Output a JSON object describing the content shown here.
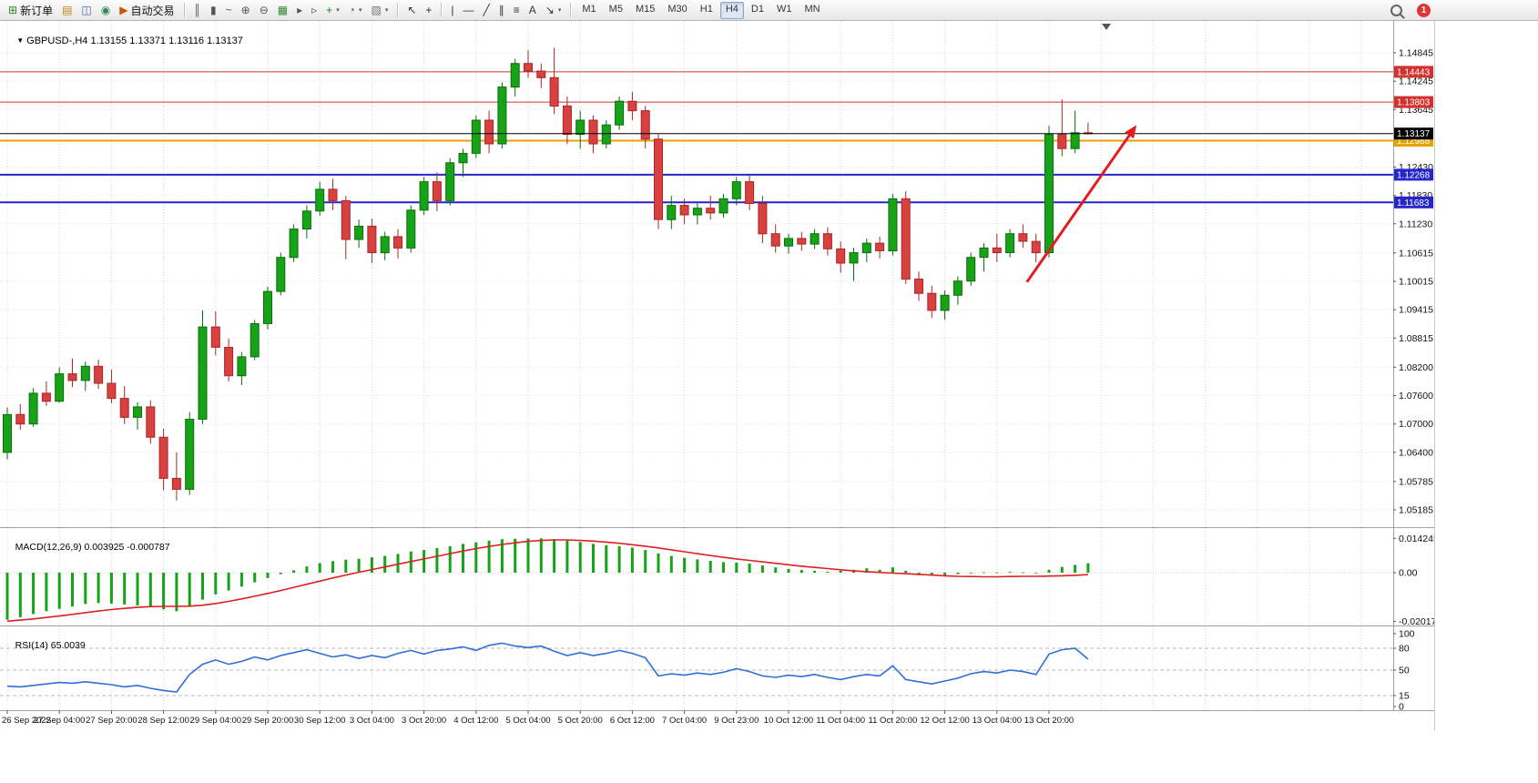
{
  "toolbar": {
    "badge_count": "1",
    "groups": [
      {
        "items": [
          {
            "name": "new-order-button",
            "icon_name": "new-order-icon",
            "glyph": "⊞",
            "color": "#2e8b2e",
            "label": "新订单"
          },
          {
            "name": "chart-profiles-icon",
            "glyph": "▤",
            "color": "#b8860b"
          },
          {
            "name": "market-watch-icon",
            "glyph": "◫",
            "color": "#4169aa"
          },
          {
            "name": "data-window-icon",
            "glyph": "◉",
            "color": "#2e8b57"
          },
          {
            "name": "autotrading-button",
            "icon_name": "autotrading-play-icon",
            "glyph": "▶",
            "color": "#cc5500",
            "label": "自动交易"
          }
        ]
      },
      {
        "items": [
          {
            "name": "bars-chart-icon",
            "glyph": "║",
            "color": "#555555"
          },
          {
            "name": "candlestick-chart-icon",
            "glyph": "▮",
            "color": "#555555"
          },
          {
            "name": "line-chart-icon",
            "glyph": "~",
            "color": "#555555"
          },
          {
            "name": "zoom-in-icon",
            "glyph": "⊕",
            "color": "#555555"
          },
          {
            "name": "zoom-out-icon",
            "glyph": "⊖",
            "color": "#555555"
          },
          {
            "name": "tile-windows-icon",
            "glyph": "▦",
            "color": "#2e8b2e"
          },
          {
            "name": "auto-scroll-icon",
            "glyph": "▸",
            "color": "#555555"
          },
          {
            "name": "chart-shift-icon",
            "glyph": "▹",
            "color": "#555555"
          },
          {
            "name": "indicators-add-icon",
            "glyph": "+",
            "color": "#1a8a1a",
            "dropdown": true
          },
          {
            "name": "periods-icon",
            "glyph": "◔",
            "color": "#4169aa",
            "dropdown": true
          },
          {
            "name": "templates-icon",
            "glyph": "▨",
            "color": "#777777",
            "dropdown": true
          }
        ]
      },
      {
        "items": [
          {
            "name": "cursor-icon",
            "glyph": "↖",
            "color": "#333333"
          },
          {
            "name": "crosshair-icon",
            "glyph": "+",
            "color": "#333333"
          }
        ]
      },
      {
        "items": [
          {
            "name": "vertical-line-icon",
            "glyph": "|",
            "color": "#333333"
          },
          {
            "name": "horizontal-line-icon",
            "glyph": "—",
            "color": "#333333"
          },
          {
            "name": "trendline-icon",
            "glyph": "╱",
            "color": "#333333"
          },
          {
            "name": "channel-icon",
            "glyph": "∥",
            "color": "#333333"
          },
          {
            "name": "fibonacci-icon",
            "glyph": "≡",
            "color": "#333333"
          },
          {
            "name": "text-icon",
            "glyph": "A",
            "color": "#333333"
          },
          {
            "name": "arrows-icon",
            "glyph": "↘",
            "color": "#333333",
            "dropdown": true
          }
        ]
      }
    ],
    "timeframes": [
      "M1",
      "M5",
      "M15",
      "M30",
      "H1",
      "H4",
      "D1",
      "W1",
      "MN"
    ],
    "active_timeframe": "H4"
  },
  "chart_header": {
    "dropdown": "▼",
    "symbol": "GBPUSD-,H4",
    "ohlc": "1.13155 1.13371 1.13116 1.13137"
  },
  "chart_data": {
    "type": "candlestick",
    "symbol": "GBPUSD-",
    "timeframe": "H4",
    "colors": {
      "bull": "#17a317",
      "bull_border": "#0a6e0a",
      "bear": "#d94040",
      "bear_border": "#a82626",
      "background": "#ffffff",
      "grid": "#d6d6d6"
    },
    "ylim": [
      1.049,
      1.15518
    ],
    "price_axis_ticks": [
      "1.14845",
      "1.14245",
      "1.13645",
      "1.12430",
      "1.11830",
      "1.11230",
      "1.10615",
      "1.10015",
      "1.09415",
      "1.08815",
      "1.08200",
      "1.07600",
      "1.07000",
      "1.06400",
      "1.05785",
      "1.05185"
    ],
    "x_labels": [
      "26 Sep 2022",
      "27 Sep 04:00",
      "27 Sep 20:00",
      "28 Sep 12:00",
      "29 Sep 04:00",
      "29 Sep 20:00",
      "30 Sep 12:00",
      "3 Oct 04:00",
      "3 Oct 20:00",
      "4 Oct 12:00",
      "5 Oct 04:00",
      "5 Oct 20:00",
      "6 Oct 12:00",
      "7 Oct 04:00",
      "9 Oct 23:00",
      "10 Oct 12:00",
      "11 Oct 04:00",
      "11 Oct 20:00",
      "12 Oct 12:00",
      "13 Oct 04:00",
      "13 Oct 20:00"
    ],
    "bars_per_label": 4,
    "candles": [
      [
        1.064,
        1.0735,
        1.0625,
        1.072
      ],
      [
        1.072,
        1.0742,
        1.0688,
        1.07
      ],
      [
        1.07,
        1.0776,
        1.0694,
        1.0765
      ],
      [
        1.0765,
        1.079,
        1.0738,
        1.0748
      ],
      [
        1.0748,
        1.082,
        1.0745,
        1.0806
      ],
      [
        1.0806,
        1.0838,
        1.0778,
        1.0792
      ],
      [
        1.0792,
        1.0832,
        1.077,
        1.0822
      ],
      [
        1.0822,
        1.0836,
        1.0774,
        1.0786
      ],
      [
        1.0786,
        1.0815,
        1.0744,
        1.0754
      ],
      [
        1.0754,
        1.078,
        1.07,
        1.0714
      ],
      [
        1.0714,
        1.0746,
        1.0688,
        1.0736
      ],
      [
        1.0736,
        1.075,
        1.0658,
        1.0672
      ],
      [
        1.0672,
        1.069,
        1.056,
        1.0585
      ],
      [
        1.0585,
        1.064,
        1.0538,
        1.0562
      ],
      [
        1.0562,
        1.0725,
        1.055,
        1.071
      ],
      [
        1.071,
        1.094,
        1.07,
        1.0905
      ],
      [
        1.0905,
        1.0938,
        1.0845,
        1.0862
      ],
      [
        1.0862,
        1.088,
        1.079,
        1.0802
      ],
      [
        1.0802,
        1.0852,
        1.0782,
        1.0842
      ],
      [
        1.0842,
        1.092,
        1.0835,
        1.0912
      ],
      [
        1.0912,
        1.099,
        1.09,
        1.098
      ],
      [
        1.098,
        1.1062,
        1.0972,
        1.1052
      ],
      [
        1.1052,
        1.1122,
        1.1042,
        1.1112
      ],
      [
        1.1112,
        1.1162,
        1.1092,
        1.115
      ],
      [
        1.115,
        1.1212,
        1.114,
        1.1196
      ],
      [
        1.1196,
        1.1218,
        1.1152,
        1.1172
      ],
      [
        1.1172,
        1.1182,
        1.1048,
        1.109
      ],
      [
        1.109,
        1.1132,
        1.1072,
        1.1118
      ],
      [
        1.1118,
        1.1134,
        1.104,
        1.1062
      ],
      [
        1.1062,
        1.1106,
        1.1046,
        1.1096
      ],
      [
        1.1096,
        1.1112,
        1.105,
        1.1072
      ],
      [
        1.1072,
        1.1162,
        1.1062,
        1.1152
      ],
      [
        1.1152,
        1.1222,
        1.1142,
        1.1212
      ],
      [
        1.1212,
        1.1232,
        1.115,
        1.1172
      ],
      [
        1.1172,
        1.1262,
        1.1162,
        1.1252
      ],
      [
        1.1252,
        1.1282,
        1.1222,
        1.1272
      ],
      [
        1.1272,
        1.1352,
        1.1262,
        1.1342
      ],
      [
        1.1342,
        1.1362,
        1.1272,
        1.1292
      ],
      [
        1.1292,
        1.1422,
        1.1282,
        1.1412
      ],
      [
        1.1412,
        1.1472,
        1.1392,
        1.1462
      ],
      [
        1.1462,
        1.149,
        1.1432,
        1.1446
      ],
      [
        1.1446,
        1.1462,
        1.141,
        1.1432
      ],
      [
        1.1432,
        1.1495,
        1.1355,
        1.1372
      ],
      [
        1.1372,
        1.1392,
        1.1292,
        1.1312
      ],
      [
        1.1312,
        1.1362,
        1.1282,
        1.1342
      ],
      [
        1.1342,
        1.1352,
        1.1272,
        1.1292
      ],
      [
        1.1292,
        1.1342,
        1.1282,
        1.1332
      ],
      [
        1.1332,
        1.1392,
        1.1322,
        1.1382
      ],
      [
        1.1382,
        1.1402,
        1.1342,
        1.1362
      ],
      [
        1.1362,
        1.1372,
        1.1282,
        1.1302
      ],
      [
        1.1302,
        1.1312,
        1.1112,
        1.1132
      ],
      [
        1.1132,
        1.1182,
        1.1112,
        1.1162
      ],
      [
        1.1162,
        1.1176,
        1.1122,
        1.1142
      ],
      [
        1.1142,
        1.1166,
        1.1122,
        1.1156
      ],
      [
        1.1156,
        1.1182,
        1.1132,
        1.1146
      ],
      [
        1.1146,
        1.1186,
        1.1136,
        1.1176
      ],
      [
        1.1176,
        1.1222,
        1.1162,
        1.1212
      ],
      [
        1.1212,
        1.1226,
        1.1152,
        1.1166
      ],
      [
        1.1166,
        1.1182,
        1.1082,
        1.1102
      ],
      [
        1.1102,
        1.1122,
        1.1062,
        1.1076
      ],
      [
        1.1076,
        1.1102,
        1.106,
        1.1092
      ],
      [
        1.1092,
        1.1106,
        1.1066,
        1.108
      ],
      [
        1.108,
        1.1112,
        1.107,
        1.1102
      ],
      [
        1.1102,
        1.1116,
        1.1056,
        1.107
      ],
      [
        1.107,
        1.1086,
        1.102,
        1.104
      ],
      [
        1.104,
        1.1072,
        1.1002,
        1.1062
      ],
      [
        1.1062,
        1.1092,
        1.1042,
        1.1082
      ],
      [
        1.1082,
        1.1096,
        1.105,
        1.1066
      ],
      [
        1.1066,
        1.1186,
        1.1056,
        1.1176
      ],
      [
        1.1176,
        1.1192,
        1.0996,
        1.1006
      ],
      [
        1.1006,
        1.1022,
        1.096,
        1.0976
      ],
      [
        1.0976,
        1.0992,
        1.0924,
        1.094
      ],
      [
        1.094,
        1.0982,
        1.092,
        1.0972
      ],
      [
        1.0972,
        1.1012,
        1.0952,
        1.1002
      ],
      [
        1.1002,
        1.1062,
        1.0992,
        1.1052
      ],
      [
        1.1052,
        1.1082,
        1.1022,
        1.1072
      ],
      [
        1.1072,
        1.1102,
        1.1042,
        1.1062
      ],
      [
        1.1062,
        1.1112,
        1.1052,
        1.1102
      ],
      [
        1.1102,
        1.1122,
        1.1072,
        1.1086
      ],
      [
        1.1086,
        1.1102,
        1.1042,
        1.1062
      ],
      [
        1.1062,
        1.133,
        1.1052,
        1.1312
      ],
      [
        1.1312,
        1.1386,
        1.1266,
        1.1282
      ],
      [
        1.1282,
        1.1362,
        1.1272,
        1.13155
      ],
      [
        1.13155,
        1.13371,
        1.13116,
        1.13137
      ]
    ],
    "hlines": [
      {
        "price": 1.14443,
        "label": "1.14443",
        "color": "#d53030",
        "width": 1
      },
      {
        "price": 1.13803,
        "label": "1.13803",
        "color": "#d53030",
        "width": 1
      },
      {
        "price": 1.12988,
        "label": "1.12988",
        "color": "#e8a200",
        "width": 2
      },
      {
        "price": 1.12268,
        "label": "1.12268",
        "color": "#2525cc",
        "width": 2
      },
      {
        "price": 1.11683,
        "label": "1.11683",
        "color": "#2525cc",
        "width": 2
      }
    ],
    "current_price": {
      "value": 1.13137,
      "label": "1.13137",
      "color": "#000000"
    },
    "trend_arrow": {
      "from_bar": 78.3,
      "from_price": 1.1,
      "to_bar": 86.6,
      "to_price": 1.1327,
      "color": "#e11d1d"
    },
    "indicators": [
      {
        "name": "MACD",
        "display": "MACD(12,26,9)",
        "value_main": "0.003925",
        "value_signal": "-0.000787",
        "axis_ticks": [
          "0.014245",
          "0.00",
          "-0.020171"
        ],
        "ylim": [
          -0.020171,
          0.014245
        ],
        "histogram_color": "#17a317",
        "signal_color": "#e02020",
        "histogram": [
          -0.0195,
          -0.0185,
          -0.0172,
          -0.016,
          -0.015,
          -0.014,
          -0.013,
          -0.0126,
          -0.0128,
          -0.0132,
          -0.0136,
          -0.014,
          -0.0152,
          -0.016,
          -0.0138,
          -0.0112,
          -0.009,
          -0.0074,
          -0.0058,
          -0.004,
          -0.0022,
          -0.0006,
          0.001,
          0.0026,
          0.004,
          0.0048,
          0.0054,
          0.0058,
          0.0064,
          0.007,
          0.0078,
          0.0088,
          0.0094,
          0.0102,
          0.011,
          0.012,
          0.0126,
          0.0133,
          0.0139,
          0.0141,
          0.0142,
          0.014245,
          0.014,
          0.0133,
          0.0127,
          0.012,
          0.0114,
          0.011,
          0.0104,
          0.0094,
          0.008,
          0.007,
          0.0062,
          0.0055,
          0.0049,
          0.0044,
          0.0042,
          0.0038,
          0.003,
          0.0022,
          0.0016,
          0.0011,
          0.0008,
          0.0004,
          0.0008,
          0.0012,
          0.0018,
          0.0012,
          0.0022,
          0.0008,
          -0.0006,
          -0.0012,
          -0.001,
          -0.0006,
          -0.0002,
          0.0002,
          0.0001,
          0.0003,
          0.0001,
          -0.0003,
          0.0012,
          0.0024,
          0.0032,
          0.003925
        ],
        "signal": [
          -0.0201,
          -0.0197,
          -0.0192,
          -0.0186,
          -0.018,
          -0.0173,
          -0.0166,
          -0.0159,
          -0.0153,
          -0.0148,
          -0.0144,
          -0.0141,
          -0.014,
          -0.014,
          -0.0139,
          -0.0135,
          -0.0128,
          -0.0119,
          -0.0109,
          -0.0098,
          -0.0086,
          -0.0074,
          -0.0061,
          -0.0048,
          -0.0035,
          -0.0022,
          -0.001,
          0.0002,
          0.0013,
          0.0024,
          0.0035,
          0.0046,
          0.0057,
          0.0068,
          0.0079,
          0.009,
          0.01,
          0.0109,
          0.0117,
          0.0124,
          0.013,
          0.0134,
          0.0136,
          0.0136,
          0.0134,
          0.0131,
          0.0127,
          0.0122,
          0.0116,
          0.011,
          0.0103,
          0.0095,
          0.0087,
          0.0079,
          0.0071,
          0.0064,
          0.0057,
          0.0051,
          0.0045,
          0.0039,
          0.0033,
          0.0027,
          0.0022,
          0.0017,
          0.0012,
          0.0008,
          0.0004,
          0.0001,
          -0.0002,
          -0.0004,
          -0.0007,
          -0.001,
          -0.0013,
          -0.0015,
          -0.0016,
          -0.0017,
          -0.0017,
          -0.0016,
          -0.0015,
          -0.0015,
          -0.0014,
          -0.0013,
          -0.0011,
          -0.000787
        ]
      },
      {
        "name": "RSI",
        "display": "RSI(14)",
        "value": "65.0039",
        "axis_ticks": [
          "100",
          "80",
          "50",
          "15",
          "0"
        ],
        "levels": [
          80,
          50,
          15
        ],
        "ylim": [
          0,
          100
        ],
        "line_color": "#2f6fd6",
        "values": [
          28,
          27,
          29,
          31,
          33,
          32,
          34,
          32,
          30,
          27,
          29,
          25,
          22,
          20,
          44,
          58,
          64,
          58,
          62,
          68,
          64,
          70,
          74,
          78,
          73,
          68,
          71,
          66,
          70,
          67,
          73,
          77,
          72,
          77,
          79,
          82,
          77,
          84,
          87,
          83,
          81,
          83,
          76,
          70,
          74,
          70,
          73,
          77,
          73,
          67,
          42,
          45,
          43,
          46,
          44,
          47,
          52,
          48,
          42,
          40,
          43,
          41,
          44,
          40,
          37,
          41,
          44,
          42,
          56,
          37,
          34,
          31,
          35,
          39,
          45,
          48,
          46,
          50,
          48,
          44,
          72,
          78,
          80,
          65
        ]
      }
    ]
  }
}
